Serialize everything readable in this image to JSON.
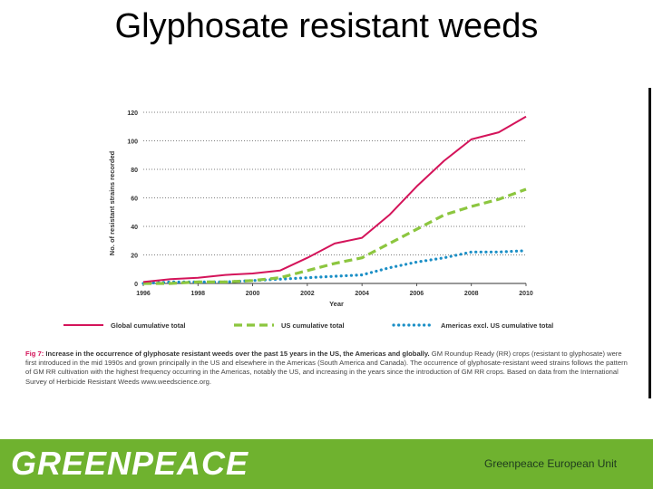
{
  "slide": {
    "title": "Glyphosate resistant weeds"
  },
  "caption": {
    "fig_label": "Fig 7:",
    "bold_text": "Increase in the occurrence of glyphosate resistant weeds over the past 15 years in the US, the Americas and globally.",
    "body_text": "GM Roundup Ready (RR) crops (resistant to glyphosate) were first introduced in the mid 1990s and grown principally in the US and elsewhere in the Americas (South America and Canada). The occurrence of glyphosate-resistant weed strains follows the pattern of GM RR cultivation with the highest frequency occurring in the Americas, notably the US, and increasing in the years since the introduction of GM RR crops. Based on data from the International Survey of Herbicide Resistant Weeds www.weedscience.org."
  },
  "footer": {
    "logo": "GREENPEACE",
    "unit": "Greenpeace European Unit",
    "color": "#6fb22f"
  },
  "chart_data": {
    "type": "line",
    "xlabel": "Year",
    "ylabel": "No. of resistant strains recorded",
    "xlim": [
      1996,
      2010
    ],
    "ylim": [
      0,
      120
    ],
    "xticks": [
      1996,
      1998,
      2000,
      2002,
      2004,
      2006,
      2008,
      2010
    ],
    "yticks": [
      0,
      20,
      40,
      60,
      80,
      100,
      120
    ],
    "grid": "horizontal dotted",
    "legend_position": "bottom",
    "series": [
      {
        "name": "Global cumulative total",
        "color": "#d4145a",
        "style": "solid",
        "x": [
          1996,
          1997,
          1998,
          1999,
          2000,
          2001,
          2002,
          2003,
          2004,
          2005,
          2006,
          2007,
          2008,
          2009,
          2010
        ],
        "values": [
          1,
          3,
          4,
          6,
          7,
          9,
          18,
          28,
          32,
          48,
          68,
          86,
          101,
          106,
          117
        ]
      },
      {
        "name": "US cumulative total",
        "color": "#8cc63f",
        "style": "dashed",
        "x": [
          1996,
          1997,
          1998,
          1999,
          2000,
          2001,
          2002,
          2003,
          2004,
          2005,
          2006,
          2007,
          2008,
          2009,
          2010
        ],
        "values": [
          0,
          0,
          1,
          1,
          2,
          4,
          9,
          14,
          18,
          28,
          38,
          48,
          54,
          59,
          66
        ]
      },
      {
        "name": "Americas excl. US  cumulative total",
        "color": "#1b8fc6",
        "style": "dotted",
        "x": [
          1996,
          1997,
          1998,
          1999,
          2000,
          2001,
          2002,
          2003,
          2004,
          2005,
          2006,
          2007,
          2008,
          2009,
          2010
        ],
        "values": [
          0,
          1,
          1,
          1,
          2,
          3,
          4,
          5,
          6,
          11,
          15,
          18,
          22,
          22,
          23
        ]
      }
    ]
  }
}
